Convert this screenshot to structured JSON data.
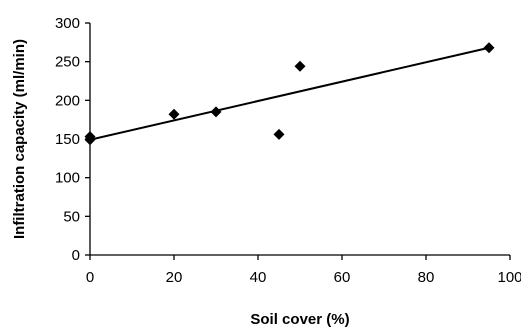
{
  "chart_data": {
    "type": "scatter",
    "title": "",
    "xlabel": "Soil cover (%)",
    "ylabel": "Infiltration capacity (ml/min)",
    "xlim": [
      0,
      100
    ],
    "ylim": [
      0,
      300
    ],
    "xticks": [
      "0",
      "20",
      "40",
      "60",
      "80",
      "100"
    ],
    "yticks": [
      "0",
      "50",
      "100",
      "150",
      "200",
      "250",
      "300"
    ],
    "grid": false,
    "legend": "none",
    "series": [
      {
        "points": [
          {
            "x": 0,
            "y": 153
          },
          {
            "x": 0,
            "y": 149
          },
          {
            "x": 20,
            "y": 182
          },
          {
            "x": 30,
            "y": 185
          },
          {
            "x": 45,
            "y": 156
          },
          {
            "x": 50,
            "y": 244
          },
          {
            "x": 95,
            "y": 268
          }
        ],
        "marker": "diamond",
        "color": "#000000"
      }
    ],
    "trendline": {
      "type": "linear",
      "from": {
        "x": 0,
        "y": 149
      },
      "to": {
        "x": 95,
        "y": 268
      }
    }
  }
}
